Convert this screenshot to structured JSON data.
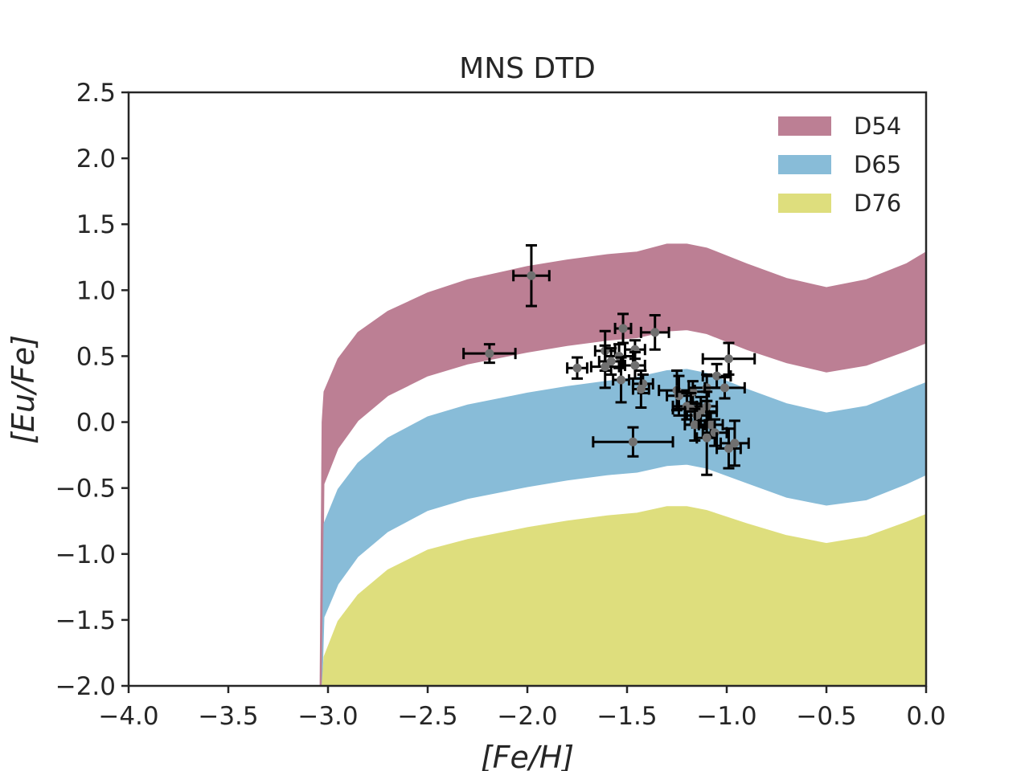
{
  "chart_data": {
    "type": "area",
    "title": "MNS DTD",
    "xlabel": "[Fe/H]",
    "ylabel": "[Eu/Fe]",
    "xlim": [
      -4.0,
      0.0
    ],
    "ylim": [
      -2.0,
      2.5
    ],
    "xticks": [
      -4.0,
      -3.5,
      -3.0,
      -2.5,
      -2.0,
      -1.5,
      -1.0,
      -0.5,
      0.0
    ],
    "xtick_labels": [
      "−4.0",
      "−3.5",
      "−3.0",
      "−2.5",
      "−2.0",
      "−1.5",
      "−1.0",
      "−0.5",
      "0.0"
    ],
    "yticks": [
      2.5,
      2.0,
      1.5,
      1.0,
      0.5,
      0.0,
      -0.5,
      -1.0,
      -1.5,
      -2.0
    ],
    "ytick_labels": [
      "2.5",
      "2.0",
      "1.5",
      "1.0",
      "0.5",
      "0.0",
      "−0.5",
      "−1.0",
      "−1.5",
      "−2.0"
    ],
    "legend_position": "top-right",
    "series": [
      {
        "name": "D54",
        "color": "#bc7f94",
        "x": [
          -3.04,
          -3.03,
          -3.02,
          -2.95,
          -2.85,
          -2.7,
          -2.5,
          -2.3,
          -2.0,
          -1.8,
          -1.6,
          -1.45,
          -1.3,
          -1.2,
          -1.1,
          -0.9,
          -0.7,
          -0.5,
          -0.3,
          -0.1,
          0.0
        ],
        "upper": [
          -2.0,
          0.0,
          0.23,
          0.48,
          0.68,
          0.84,
          0.98,
          1.08,
          1.18,
          1.23,
          1.27,
          1.29,
          1.35,
          1.35,
          1.32,
          1.2,
          1.09,
          1.02,
          1.08,
          1.2,
          1.29
        ],
        "lower": [
          -2.0,
          -2.0,
          -0.47,
          -0.2,
          0.01,
          0.2,
          0.35,
          0.44,
          0.53,
          0.58,
          0.62,
          0.64,
          0.69,
          0.7,
          0.67,
          0.55,
          0.45,
          0.38,
          0.43,
          0.54,
          0.6
        ]
      },
      {
        "name": "D65",
        "color": "#88bcd8",
        "x": [
          -3.04,
          -3.03,
          -3.02,
          -2.95,
          -2.85,
          -2.7,
          -2.5,
          -2.3,
          -2.0,
          -1.8,
          -1.6,
          -1.45,
          -1.3,
          -1.2,
          -1.1,
          -0.9,
          -0.7,
          -0.5,
          -0.3,
          -0.1,
          0.0
        ],
        "upper": [
          -2.0,
          -2.0,
          -0.77,
          -0.51,
          -0.31,
          -0.12,
          0.04,
          0.13,
          0.22,
          0.27,
          0.31,
          0.34,
          0.39,
          0.4,
          0.37,
          0.25,
          0.14,
          0.07,
          0.12,
          0.24,
          0.3
        ],
        "lower": [
          -2.0,
          -2.0,
          -1.48,
          -1.23,
          -1.02,
          -0.83,
          -0.67,
          -0.58,
          -0.49,
          -0.44,
          -0.4,
          -0.38,
          -0.33,
          -0.32,
          -0.35,
          -0.46,
          -0.57,
          -0.63,
          -0.59,
          -0.47,
          -0.4
        ]
      },
      {
        "name": "D76",
        "color": "#dede7d",
        "x": [
          -3.04,
          -3.03,
          -3.02,
          -2.95,
          -2.85,
          -2.7,
          -2.5,
          -2.3,
          -2.0,
          -1.8,
          -1.6,
          -1.45,
          -1.3,
          -1.2,
          -1.1,
          -0.9,
          -0.7,
          -0.5,
          -0.3,
          -0.1,
          0.0
        ],
        "upper": [
          -2.0,
          -2.0,
          -1.78,
          -1.51,
          -1.31,
          -1.12,
          -0.97,
          -0.89,
          -0.8,
          -0.75,
          -0.71,
          -0.69,
          -0.64,
          -0.64,
          -0.67,
          -0.77,
          -0.86,
          -0.92,
          -0.87,
          -0.76,
          -0.7
        ],
        "lower": [
          -2.0,
          -2.0,
          -2.0,
          -2.0,
          -2.0,
          -2.0,
          -2.0,
          -2.0,
          -2.0,
          -2.0,
          -2.0,
          -2.0,
          -2.0,
          -2.0,
          -2.0,
          -2.0,
          -2.0,
          -2.0,
          -2.0,
          -2.0,
          -2.0
        ]
      }
    ],
    "observations": {
      "name": "stars",
      "marker_color": "#707070",
      "errorbar_color": "#000000",
      "points": [
        {
          "x": -1.98,
          "y": 1.11,
          "xerr": 0.09,
          "yerr": 0.23
        },
        {
          "x": -2.19,
          "y": 0.52,
          "xerr": 0.13,
          "yerr": 0.07
        },
        {
          "x": -1.75,
          "y": 0.41,
          "xerr": 0.05,
          "yerr": 0.08
        },
        {
          "x": -1.61,
          "y": 0.54,
          "xerr": 0.05,
          "yerr": 0.15
        },
        {
          "x": -1.52,
          "y": 0.71,
          "xerr": 0.04,
          "yerr": 0.11
        },
        {
          "x": -1.36,
          "y": 0.68,
          "xerr": 0.07,
          "yerr": 0.13
        },
        {
          "x": -1.46,
          "y": 0.55,
          "xerr": 0.05,
          "yerr": 0.07
        },
        {
          "x": -1.54,
          "y": 0.5,
          "xerr": 0.07,
          "yerr": 0.09
        },
        {
          "x": -1.58,
          "y": 0.46,
          "xerr": 0.06,
          "yerr": 0.1
        },
        {
          "x": -1.61,
          "y": 0.42,
          "xerr": 0.07,
          "yerr": 0.16
        },
        {
          "x": -1.46,
          "y": 0.43,
          "xerr": 0.05,
          "yerr": 0.1
        },
        {
          "x": -1.53,
          "y": 0.32,
          "xerr": 0.04,
          "yerr": 0.17
        },
        {
          "x": -1.42,
          "y": 0.29,
          "xerr": 0.05,
          "yerr": 0.07
        },
        {
          "x": -1.43,
          "y": 0.25,
          "xerr": 0.04,
          "yerr": 0.14
        },
        {
          "x": -1.25,
          "y": 0.24,
          "xerr": 0.09,
          "yerr": 0.15
        },
        {
          "x": -1.24,
          "y": 0.2,
          "xerr": 0.06,
          "yerr": 0.15
        },
        {
          "x": -1.17,
          "y": 0.23,
          "xerr": 0.08,
          "yerr": 0.08
        },
        {
          "x": -1.1,
          "y": 0.26,
          "xerr": 0.09,
          "yerr": 0.1
        },
        {
          "x": -1.05,
          "y": 0.35,
          "xerr": 0.07,
          "yerr": 0.09
        },
        {
          "x": -0.99,
          "y": 0.48,
          "xerr": 0.13,
          "yerr": 0.12
        },
        {
          "x": -1.01,
          "y": 0.26,
          "xerr": 0.1,
          "yerr": 0.08
        },
        {
          "x": -1.2,
          "y": 0.12,
          "xerr": 0.07,
          "yerr": 0.1
        },
        {
          "x": -1.18,
          "y": 0.1,
          "xerr": 0.09,
          "yerr": 0.12
        },
        {
          "x": -1.13,
          "y": 0.08,
          "xerr": 0.08,
          "yerr": 0.11
        },
        {
          "x": -1.15,
          "y": 0.05,
          "xerr": 0.06,
          "yerr": 0.09
        },
        {
          "x": -1.1,
          "y": 0.12,
          "xerr": 0.05,
          "yerr": 0.11
        },
        {
          "x": -1.16,
          "y": -0.02,
          "xerr": 0.05,
          "yerr": 0.12
        },
        {
          "x": -1.08,
          "y": -0.02,
          "xerr": 0.06,
          "yerr": 0.09
        },
        {
          "x": -1.06,
          "y": -0.08,
          "xerr": 0.06,
          "yerr": 0.1
        },
        {
          "x": -1.1,
          "y": -0.12,
          "xerr": 0.05,
          "yerr": 0.28
        },
        {
          "x": -0.99,
          "y": -0.2,
          "xerr": 0.06,
          "yerr": 0.15
        },
        {
          "x": -0.96,
          "y": -0.16,
          "xerr": 0.07,
          "yerr": 0.17
        },
        {
          "x": -1.47,
          "y": -0.15,
          "xerr": 0.2,
          "yerr": 0.11
        }
      ]
    }
  }
}
